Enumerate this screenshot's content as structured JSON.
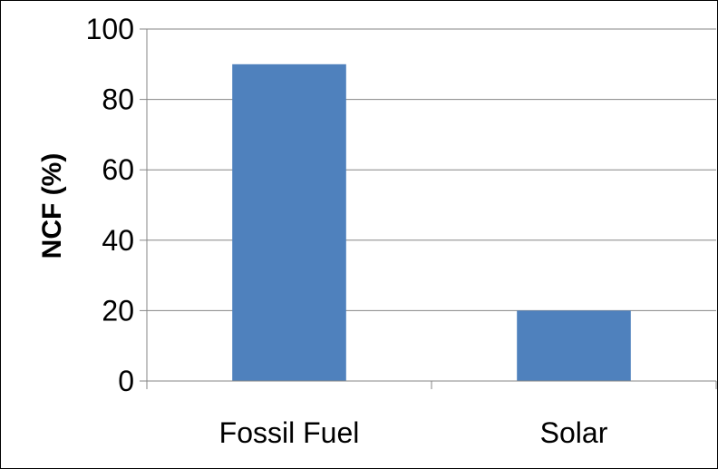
{
  "chart_data": {
    "type": "bar",
    "categories": [
      "Fossil Fuel",
      "Solar"
    ],
    "values": [
      90,
      20
    ],
    "title": "",
    "xlabel": "",
    "ylabel": "NCF (%)",
    "ylim": [
      0,
      100
    ],
    "yticks": [
      "0",
      "20",
      "40",
      "60",
      "80",
      "100"
    ],
    "grid": "horizontal",
    "legend": "none",
    "bar_color": "#4F81BD",
    "grid_color": "#868686"
  }
}
